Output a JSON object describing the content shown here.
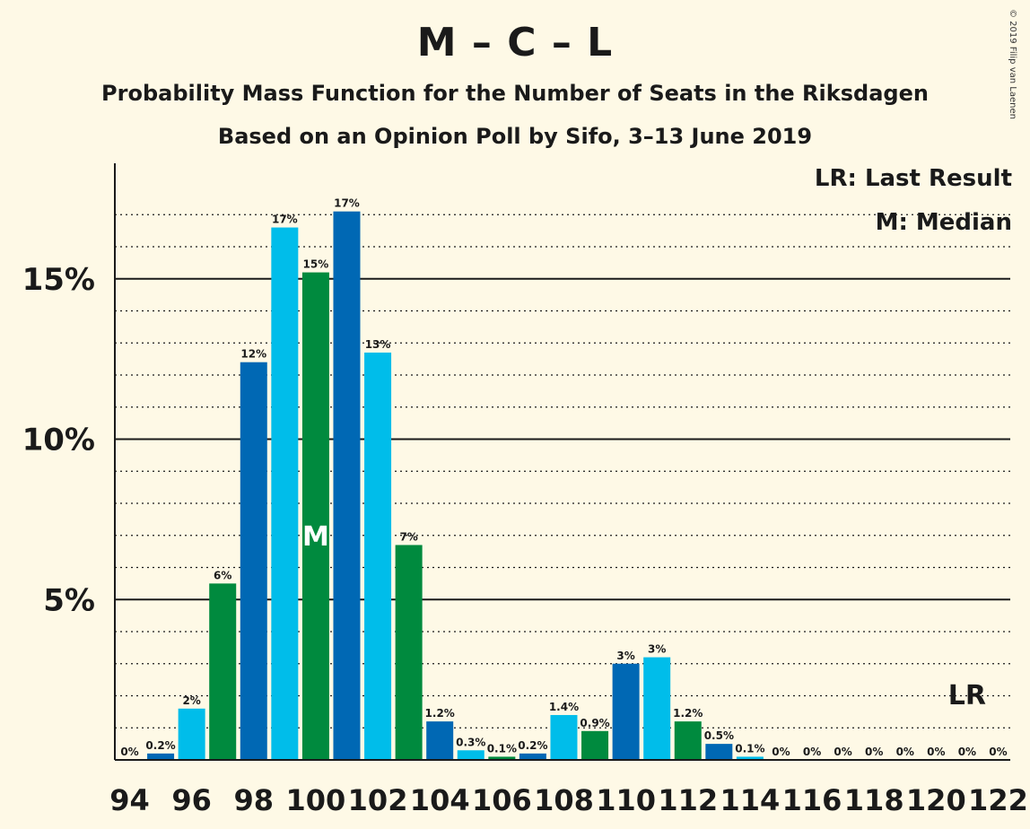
{
  "header": {
    "title": "M – C – L",
    "subtitle1": "Probability Mass Function for the Number of Seats in the Riksdagen",
    "subtitle2": "Based on an Opinion Poll by Sifo, 3–13 June 2019",
    "copyright": "© 2019 Filip van Laenen"
  },
  "legend": {
    "last_result": "LR: Last Result",
    "median": "M: Median"
  },
  "chart_data": {
    "type": "bar",
    "title": "M – C – L",
    "x": [
      94,
      95,
      96,
      97,
      98,
      99,
      100,
      101,
      102,
      103,
      104,
      105,
      106,
      107,
      108,
      109,
      110,
      111,
      112,
      113,
      114,
      115,
      116,
      117,
      118,
      119,
      120,
      121,
      122
    ],
    "values": [
      0,
      0.2,
      1.6,
      5.5,
      12.4,
      16.6,
      15.2,
      17.1,
      12.7,
      6.7,
      1.2,
      0.3,
      0.1,
      0.2,
      1.4,
      0.9,
      3.0,
      3.2,
      1.2,
      0.5,
      0.1,
      0,
      0,
      0,
      0,
      0,
      0,
      0,
      0
    ],
    "labels": [
      "0%",
      "0.2%",
      "2%",
      "6%",
      "12%",
      "17%",
      "15%",
      "17%",
      "13%",
      "7%",
      "1.2%",
      "0.3%",
      "0.1%",
      "0.2%",
      "1.4%",
      "0.9%",
      "3%",
      "3%",
      "1.2%",
      "0.5%",
      "0.1%",
      "0%",
      "0%",
      "0%",
      "0%",
      "0%",
      "0%",
      "0%",
      "0%"
    ],
    "xticks": [
      "94",
      "96",
      "98",
      "100",
      "102",
      "104",
      "106",
      "108",
      "110",
      "112",
      "114",
      "116",
      "118",
      "120",
      "122"
    ],
    "yticks": [
      "5%",
      "10%",
      "15%"
    ],
    "ylim": [
      0,
      18.5
    ],
    "median_seat": 100,
    "median_label": "M",
    "last_result_seat": 121,
    "last_result_label": "LR",
    "colors": [
      "#0068b4",
      "#00bdea",
      "#008a3e"
    ],
    "grid": true
  }
}
